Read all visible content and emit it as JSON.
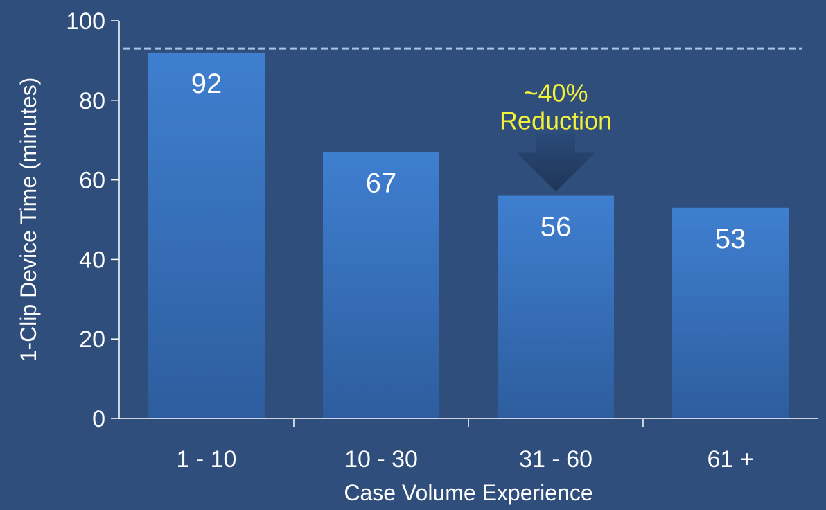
{
  "chart_data": {
    "type": "bar",
    "categories": [
      "1 - 10",
      "10 - 30",
      "31 - 60",
      "61 +"
    ],
    "values": [
      92,
      67,
      56,
      53
    ],
    "data_labels": [
      "92",
      "67",
      "56",
      "53"
    ],
    "xlabel": "Case Volume Experience",
    "ylabel": "1-Clip Device Time (minutes)",
    "ylim": [
      0,
      100
    ],
    "yticks": [
      "0",
      "20",
      "40",
      "60",
      "80",
      "100"
    ],
    "reference_line": 93,
    "annotation": {
      "line1": "~40%",
      "line2": "Reduction",
      "category": "31 - 60"
    },
    "grid": false,
    "legend": "none",
    "colors": {
      "background": "#2f4e7c",
      "bar_top": "#3f7fd0",
      "bar_bottom": "#2d5d9e",
      "axis": "#ffffff",
      "reference_line": "#a9c4e6",
      "annotation_text": "#f2f23a",
      "arrow": "#1f3556"
    }
  }
}
